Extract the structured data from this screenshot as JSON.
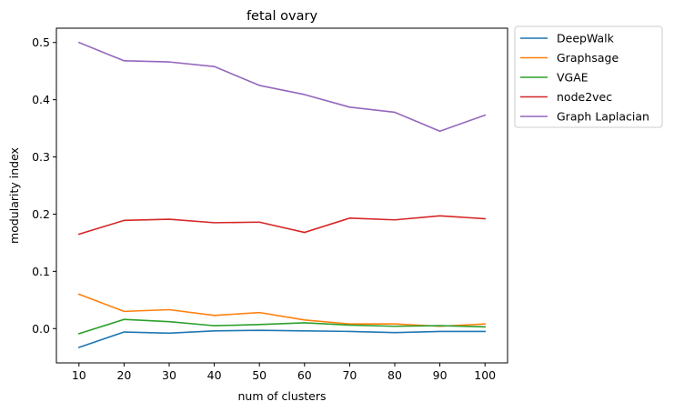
{
  "chart_data": {
    "type": "line",
    "title": "fetal ovary",
    "xlabel": "num of clusters",
    "ylabel": "modularity index",
    "x": [
      10,
      20,
      30,
      40,
      50,
      60,
      70,
      80,
      90,
      100
    ],
    "xticks": [
      "10",
      "20",
      "30",
      "40",
      "50",
      "60",
      "70",
      "80",
      "90",
      "100"
    ],
    "yticks": [
      "0.0",
      "0.1",
      "0.2",
      "0.3",
      "0.4",
      "0.5"
    ],
    "ylim": [
      -0.06,
      0.525
    ],
    "xlim": [
      5,
      105
    ],
    "grid": false,
    "legend_position": "outside-top-right",
    "series": [
      {
        "name": "DeepWalk",
        "color": "#1f77b4",
        "values": [
          -0.033,
          -0.006,
          -0.008,
          -0.004,
          -0.003,
          -0.004,
          -0.005,
          -0.007,
          -0.005,
          -0.005
        ]
      },
      {
        "name": "Graphsage",
        "color": "#ff7f0e",
        "values": [
          0.06,
          0.03,
          0.033,
          0.023,
          0.028,
          0.015,
          0.008,
          0.008,
          0.004,
          0.008
        ]
      },
      {
        "name": "VGAE",
        "color": "#2ca02c",
        "values": [
          -0.009,
          0.016,
          0.012,
          0.005,
          0.007,
          0.01,
          0.006,
          0.004,
          0.005,
          0.003
        ]
      },
      {
        "name": "node2vec",
        "color": "#d62728",
        "values": [
          0.165,
          0.189,
          0.191,
          0.185,
          0.186,
          0.168,
          0.193,
          0.19,
          0.197,
          0.192
        ]
      },
      {
        "name": "Graph Laplacian",
        "color": "#9467bd",
        "values": [
          0.5,
          0.468,
          0.466,
          0.458,
          0.425,
          0.409,
          0.387,
          0.378,
          0.345,
          0.373
        ]
      }
    ]
  }
}
